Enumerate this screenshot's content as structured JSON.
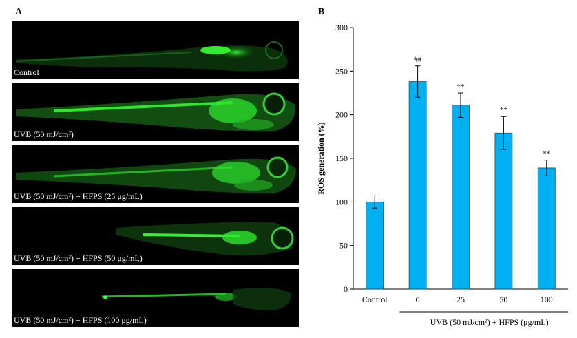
{
  "panel_a": {
    "letter": "A",
    "images": [
      {
        "caption": "Control"
      },
      {
        "caption": "UVB (50 mJ/cm²)"
      },
      {
        "caption": "UVB (50 mJ/cm²) + HFPS (25 μg/mL)"
      },
      {
        "caption": "UVB (50 mJ/cm²) + HFPS (50 μg/mL)"
      },
      {
        "caption": "UVB (50 mJ/cm²) + HFPS (100 μg/mL)"
      }
    ]
  },
  "chart_data": {
    "type": "bar",
    "panel_letter": "B",
    "ylabel": "ROS generation (%)",
    "xlabel": "UVB (50 mJ/cm²) + HFPS (μg/mL)",
    "ylim": [
      0,
      300
    ],
    "yticks": [
      0,
      50,
      100,
      150,
      200,
      250,
      300
    ],
    "categories": [
      "Control",
      "0",
      "25",
      "50",
      "100"
    ],
    "values": [
      100,
      238,
      211,
      179,
      139
    ],
    "errors": [
      7,
      18,
      14,
      19,
      9
    ],
    "annotations": [
      "",
      "##",
      "**",
      "**",
      "**"
    ],
    "bar_color": "#00b0f0",
    "grid": false
  }
}
